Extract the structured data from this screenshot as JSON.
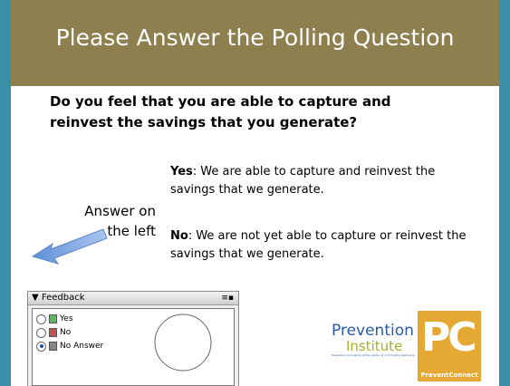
{
  "header": {
    "title": "Please Answer the Polling Question"
  },
  "question": "Do you feel that you are able to capture and reinvest the savings that you generate?",
  "options": [
    {
      "label": "Yes",
      "text": ": We are able to capture and reinvest the savings that we generate."
    },
    {
      "label": "No",
      "text": ": We are not yet able to capture or reinvest the savings that we generate."
    }
  ],
  "note": {
    "line1": "Answer on",
    "line2": "the left"
  },
  "feedback": {
    "title": "Feedback",
    "choices": [
      "Yes",
      "No",
      "No Answer"
    ]
  },
  "logos": {
    "prevention": "Prevention",
    "institute": "Institute",
    "tagline": "Prevention and equity at the center of community well-being",
    "pc": "PC",
    "preventconnect": "PreventConnect"
  }
}
